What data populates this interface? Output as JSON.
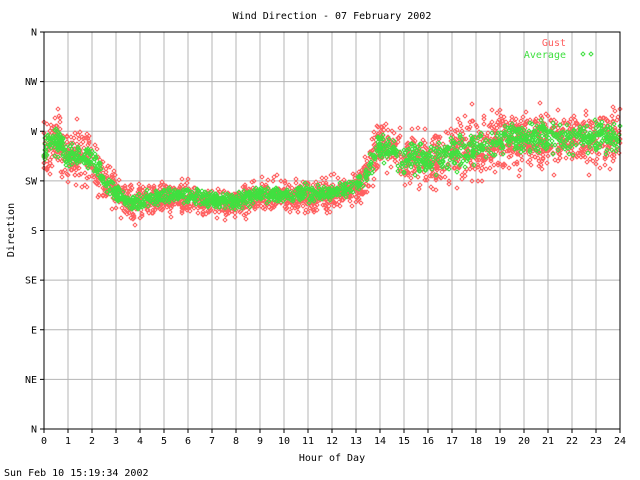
{
  "chart_data": {
    "type": "scatter",
    "title": "Wind Direction - 07 February 2002",
    "xlabel": "Hour of Day",
    "ylabel": "Direction",
    "xlim": [
      0,
      24
    ],
    "ylim": [
      0,
      360
    ],
    "x_ticks": [
      "0",
      "1",
      "2",
      "3",
      "4",
      "5",
      "6",
      "7",
      "8",
      "9",
      "10",
      "11",
      "12",
      "13",
      "14",
      "15",
      "16",
      "17",
      "18",
      "19",
      "20",
      "21",
      "22",
      "23",
      "24"
    ],
    "y_ticks": [
      "N",
      "NE",
      "E",
      "SE",
      "S",
      "SW",
      "W",
      "NW",
      "N"
    ],
    "grid": true,
    "legend_placement": "top-right",
    "colors": {
      "gust": "#ff6060",
      "average": "#40e040",
      "grid": "#b4b4b4",
      "axis": "#000000"
    },
    "series": [
      {
        "name": "Gust",
        "marker": "diamond",
        "color": "#ff6060",
        "profile": [
          [
            0.0,
            255,
            35
          ],
          [
            0.5,
            265,
            30
          ],
          [
            1.0,
            245,
            30
          ],
          [
            1.5,
            248,
            30
          ],
          [
            2.0,
            245,
            30
          ],
          [
            2.5,
            225,
            25
          ],
          [
            3.0,
            215,
            20
          ],
          [
            3.5,
            205,
            18
          ],
          [
            4.0,
            205,
            20
          ],
          [
            5.0,
            210,
            18
          ],
          [
            6.0,
            210,
            18
          ],
          [
            7.0,
            205,
            18
          ],
          [
            8.0,
            205,
            18
          ],
          [
            9.0,
            212,
            18
          ],
          [
            10.0,
            210,
            18
          ],
          [
            11.0,
            212,
            18
          ],
          [
            12.0,
            212,
            18
          ],
          [
            13.0,
            218,
            18
          ],
          [
            13.5,
            235,
            25
          ],
          [
            14.0,
            260,
            30
          ],
          [
            15.0,
            245,
            30
          ],
          [
            16.0,
            245,
            35
          ],
          [
            17.0,
            250,
            35
          ],
          [
            18.0,
            255,
            35
          ],
          [
            19.0,
            260,
            35
          ],
          [
            20.0,
            262,
            35
          ],
          [
            21.0,
            262,
            35
          ],
          [
            22.0,
            262,
            35
          ],
          [
            23.0,
            262,
            35
          ],
          [
            24.0,
            262,
            35
          ]
        ]
      },
      {
        "name": "Average",
        "marker": "diamond",
        "color": "#40e040",
        "profile": [
          [
            0.0,
            255,
            18
          ],
          [
            0.5,
            262,
            15
          ],
          [
            1.0,
            245,
            15
          ],
          [
            1.5,
            248,
            15
          ],
          [
            2.0,
            245,
            15
          ],
          [
            2.5,
            225,
            12
          ],
          [
            3.0,
            215,
            10
          ],
          [
            3.5,
            205,
            9
          ],
          [
            4.0,
            207,
            10
          ],
          [
            5.0,
            212,
            9
          ],
          [
            6.0,
            212,
            9
          ],
          [
            7.0,
            207,
            9
          ],
          [
            8.0,
            207,
            9
          ],
          [
            9.0,
            214,
            9
          ],
          [
            10.0,
            212,
            9
          ],
          [
            11.0,
            214,
            9
          ],
          [
            12.0,
            214,
            9
          ],
          [
            13.0,
            220,
            10
          ],
          [
            13.5,
            235,
            12
          ],
          [
            14.0,
            258,
            15
          ],
          [
            15.0,
            245,
            16
          ],
          [
            16.0,
            245,
            18
          ],
          [
            17.0,
            250,
            18
          ],
          [
            18.0,
            255,
            18
          ],
          [
            19.0,
            262,
            18
          ],
          [
            20.0,
            265,
            18
          ],
          [
            21.0,
            265,
            18
          ],
          [
            22.0,
            265,
            18
          ],
          [
            23.0,
            265,
            18
          ],
          [
            24.0,
            265,
            18
          ]
        ]
      }
    ]
  },
  "footer": {
    "timestamp": "Sun Feb 10 15:19:34 2002"
  }
}
